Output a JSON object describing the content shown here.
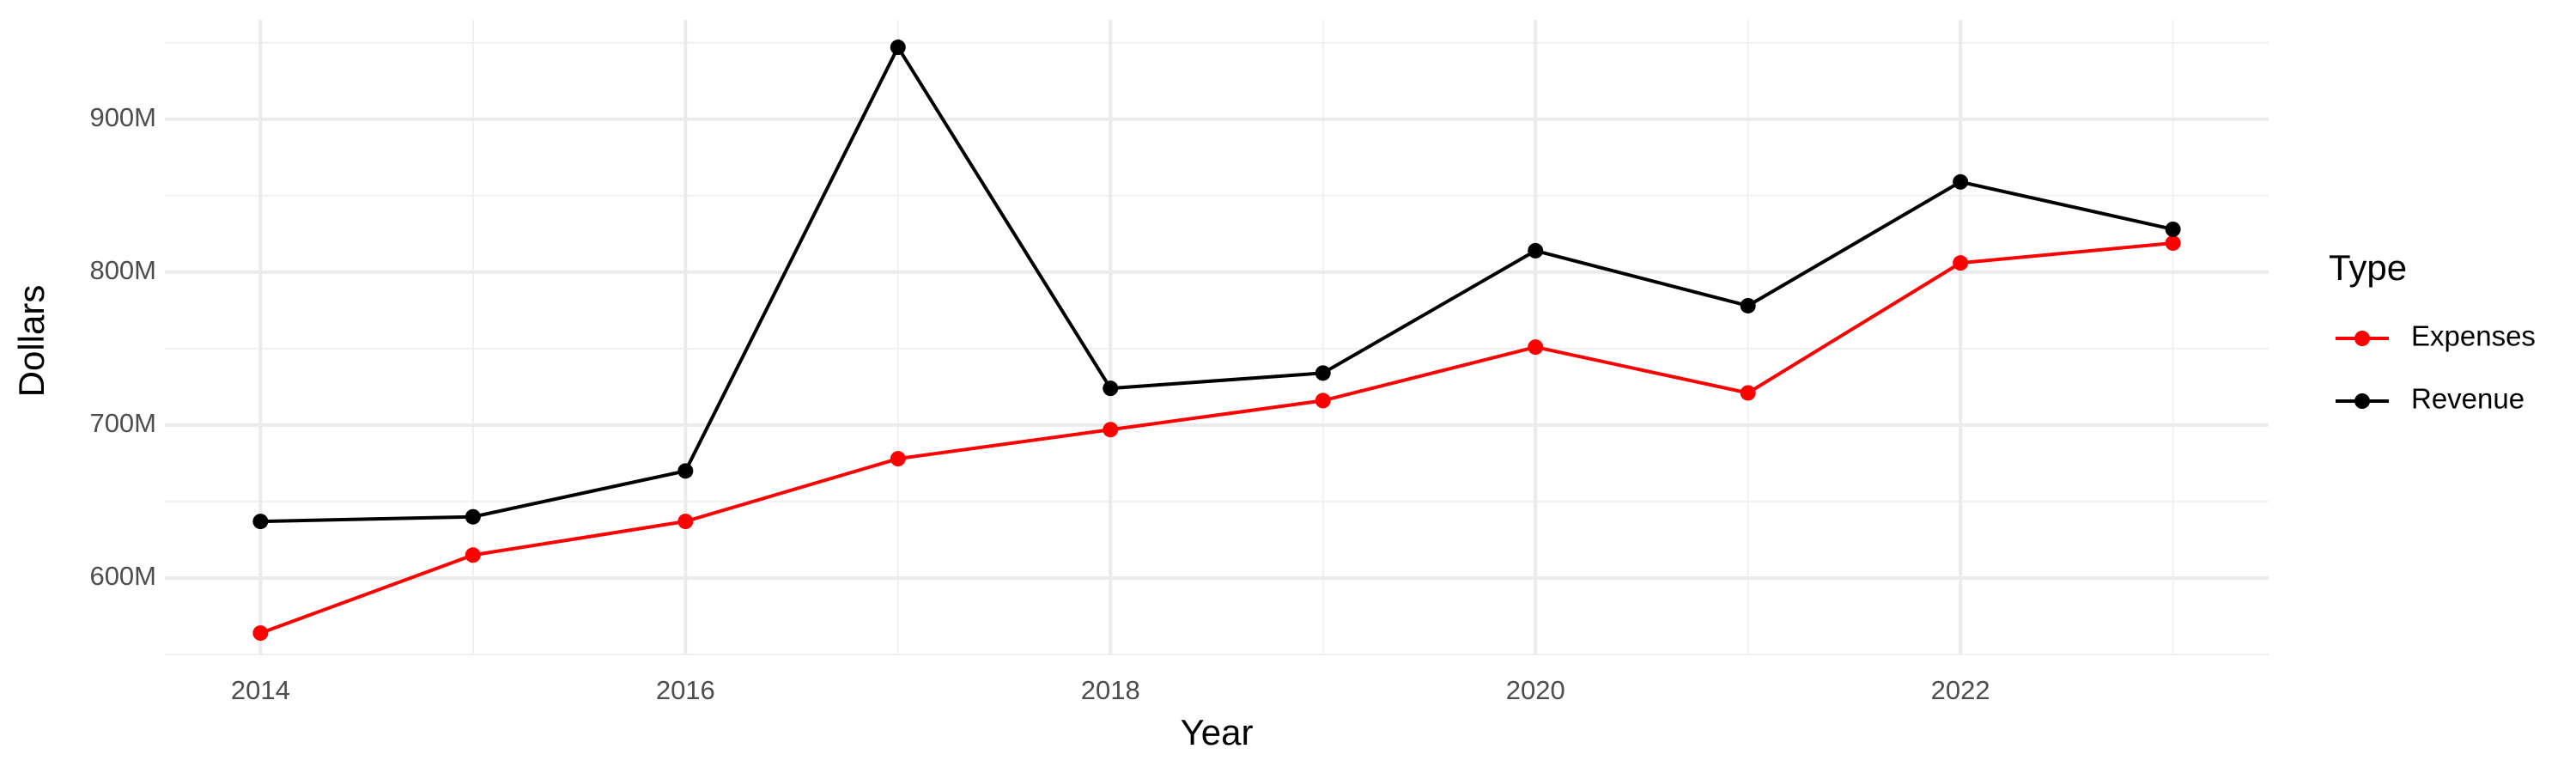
{
  "chart_data": {
    "type": "line",
    "x_label": "Year",
    "y_label": "Dollars",
    "legend_title": "Type",
    "x": [
      2014,
      2015,
      2016,
      2017,
      2018,
      2019,
      2020,
      2021,
      2022,
      2023
    ],
    "series": [
      {
        "name": "Expenses",
        "color": "#ff0000",
        "values": [
          564000000,
          615000000,
          637000000,
          678000000,
          697000000,
          716000000,
          751000000,
          721000000,
          806000000,
          819000000
        ]
      },
      {
        "name": "Revenue",
        "color": "#000000",
        "values": [
          637000000,
          640000000,
          670000000,
          947000000,
          724000000,
          734000000,
          814000000,
          778000000,
          859000000,
          828000000
        ]
      }
    ],
    "xlim": [
      2013.55,
      2023.45
    ],
    "ylim": [
      550000000,
      965000000
    ],
    "xticks": [
      2014,
      2016,
      2018,
      2020,
      2022
    ],
    "yticks": [
      {
        "value": 600000000,
        "label": "600M"
      },
      {
        "value": 700000000,
        "label": "700M"
      },
      {
        "value": 800000000,
        "label": "800M"
      },
      {
        "value": 900000000,
        "label": "900M"
      }
    ],
    "x_minor_ticks": [
      2015,
      2017,
      2019,
      2021,
      2023
    ],
    "y_minor_ticks": [
      550000000,
      650000000,
      750000000,
      850000000,
      950000000
    ],
    "grid": true,
    "legend": "right"
  }
}
